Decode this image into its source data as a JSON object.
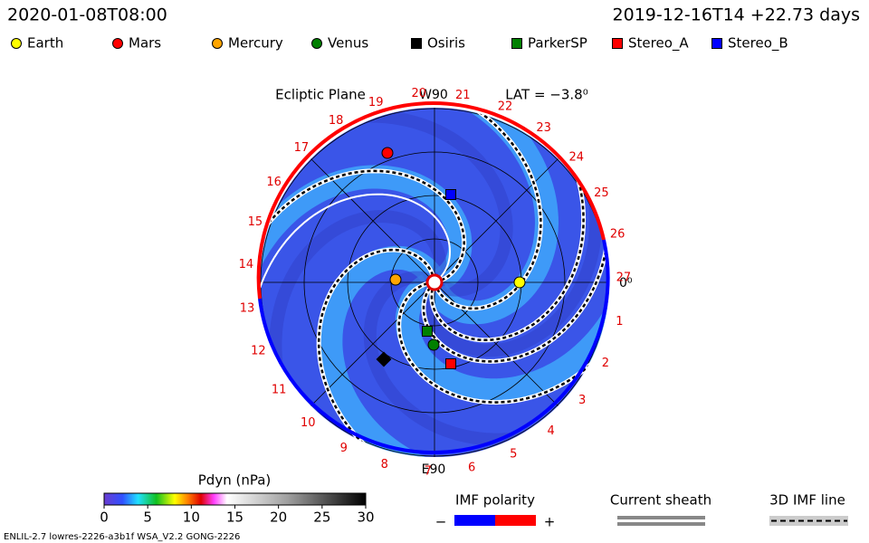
{
  "header": {
    "time": "2020-01-08T08:00",
    "reference": "2019-12-16T14 +22.73 days"
  },
  "legend": [
    {
      "name": "Earth",
      "color": "#ffff00",
      "shape": "circle"
    },
    {
      "name": "Mars",
      "color": "#ff0000",
      "shape": "circle"
    },
    {
      "name": "Mercury",
      "color": "#ffa500",
      "shape": "circle"
    },
    {
      "name": "Venus",
      "color": "#008000",
      "shape": "circle"
    },
    {
      "name": "Osiris",
      "color": "#000000",
      "shape": "square"
    },
    {
      "name": "ParkerSP",
      "color": "#008000",
      "shape": "square"
    },
    {
      "name": "Stereo_A",
      "color": "#ff0000",
      "shape": "square"
    },
    {
      "name": "Stereo_B",
      "color": "#0000ff",
      "shape": "square"
    }
  ],
  "plot": {
    "title": "Ecliptic Plane",
    "top_label": "W90",
    "bottom_label": "E90",
    "lat_label": "LAT = −3.8⁰",
    "right_label": "0⁰",
    "day_marks": [
      "1",
      "2",
      "3",
      "4",
      "5",
      "6",
      "7",
      "8",
      "9",
      "10",
      "11",
      "12",
      "13",
      "14",
      "15",
      "16",
      "17",
      "18",
      "19",
      "20",
      "21",
      "22",
      "23",
      "24",
      "25",
      "26",
      "27"
    ]
  },
  "colorbar": {
    "label": "Pdyn (nPa)",
    "range": [
      0,
      30
    ],
    "ticks": [
      0,
      5,
      10,
      15,
      20,
      25,
      30
    ]
  },
  "keys": {
    "imf_polarity": "IMF polarity",
    "minus": "−",
    "plus": "+",
    "current_sheath": "Current sheath",
    "imf_line": "3D IMF line"
  },
  "footer": "ENLIL-2.7 lowres-2226-a3b1f WSA_V2.2 GONG-2226"
}
